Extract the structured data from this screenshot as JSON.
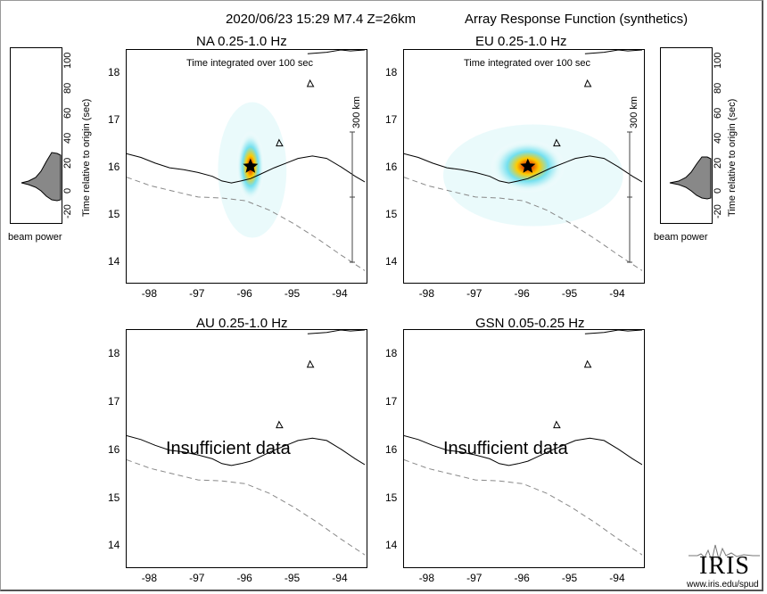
{
  "header": {
    "event": "2020/06/23 15:29  M7.4  Z=26km",
    "title": "Array Response Function (synthetics)"
  },
  "panels": [
    {
      "id": "na",
      "title": "NA  0.25-1.0 Hz",
      "has_data": true,
      "integration": "Time integrated over 100 sec",
      "scale": "300 km"
    },
    {
      "id": "eu",
      "title": "EU  0.25-1.0 Hz",
      "has_data": true,
      "integration": "Time integrated over 100 sec",
      "scale": "300 km"
    },
    {
      "id": "au",
      "title": "AU  0.25-1.0 Hz",
      "has_data": false,
      "message": "Insufficient data"
    },
    {
      "id": "gsn",
      "title": "GSN  0.05-0.25 Hz",
      "has_data": false,
      "message": "Insufficient data"
    }
  ],
  "axes": {
    "lon_ticks": [
      "-98",
      "-97",
      "-96",
      "-95",
      "-94"
    ],
    "lat_ticks": [
      "18",
      "17",
      "16",
      "15",
      "14"
    ],
    "lon_range": [
      -98.5,
      -93.5
    ],
    "lat_range": [
      13.6,
      18.5
    ]
  },
  "beam_power": {
    "label": "beam power",
    "axis_label": "Time relative to origin (sec)",
    "ticks": [
      "100",
      "80",
      "60",
      "40",
      "20",
      "0",
      "-20"
    ]
  },
  "epicenter": {
    "lon": -95.9,
    "lat": 16.03
  },
  "colors": {
    "peak": "#d40000",
    "mid": "#ffcc00",
    "low": "#66ddee",
    "faint": "#d8f6f8"
  },
  "logo": {
    "text": "IRIS",
    "url": "www.iris.edu/spud"
  }
}
